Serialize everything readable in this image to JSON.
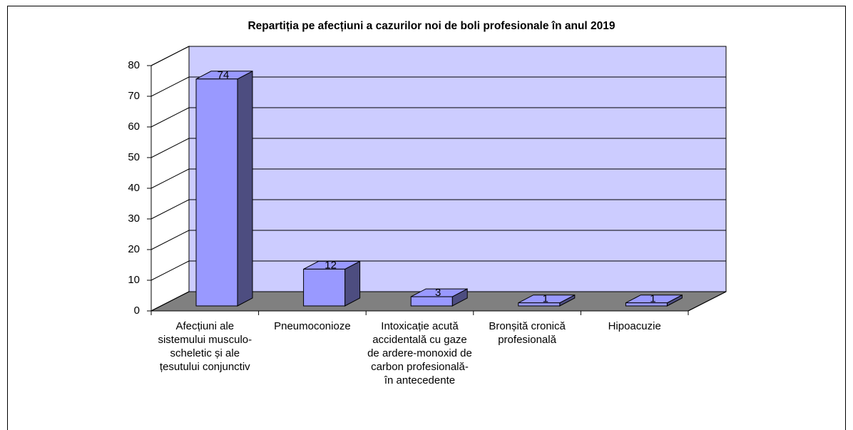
{
  "chart_data": {
    "type": "bar3d",
    "title": "Repartiția pe afecțiuni a cazurilor noi de boli profesionale în anul 2019",
    "categories": [
      "Afecțiuni ale sistemului musculo-scheletic și ale țesutului conjunctiv",
      "Pneumoconioze",
      "Intoxicație acută accidentală cu gaze de ardere-monoxid de carbon profesională- în antecedente",
      "Bronșită cronică profesională",
      "Hipoacuzie"
    ],
    "values": [
      74,
      12,
      3,
      1,
      1
    ],
    "color": "#9999ff",
    "ylim": [
      0,
      80
    ],
    "yticks": [
      0,
      10,
      20,
      30,
      40,
      50,
      60,
      70,
      80
    ],
    "grid": true
  }
}
